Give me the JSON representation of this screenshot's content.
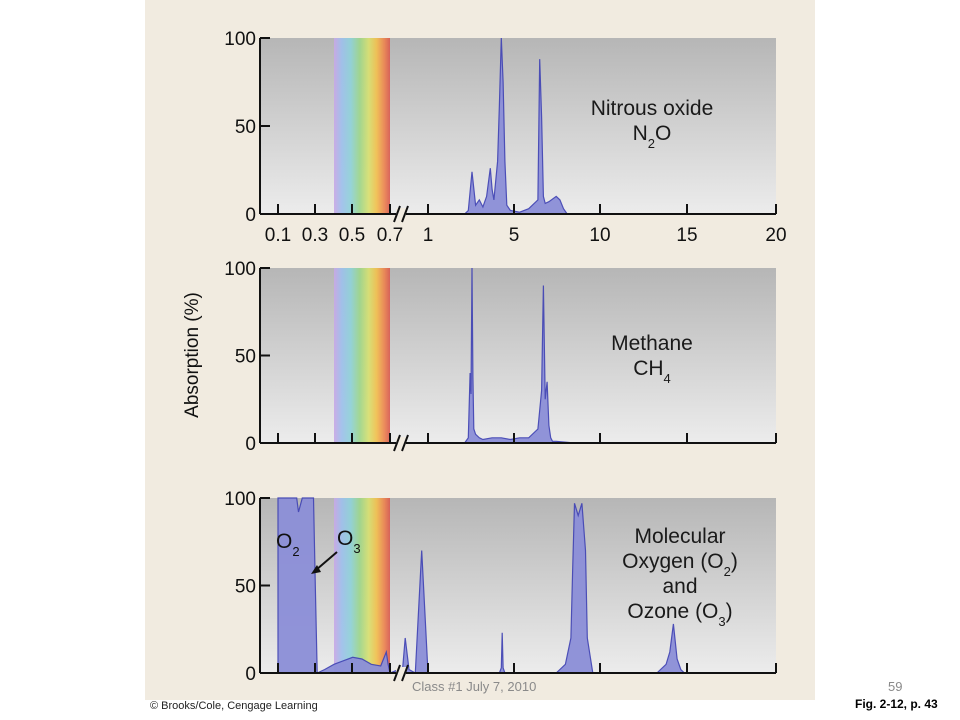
{
  "slide": {
    "footer_text": "Class #1 July 7, 2010",
    "slide_number": "59",
    "figure_reference": "Fig. 2-12, p. 43",
    "credit": "© Brooks/Cole, Cengage Learning"
  },
  "colors": {
    "page_background": "#f1ebe0",
    "absorption_fill": "#8c8fd8",
    "absorption_stroke": "#4447b5"
  },
  "chart_data": [
    {
      "type": "area",
      "ylabel": "Absorption (%)",
      "ylim": [
        0,
        100
      ],
      "yticks": [
        "0",
        "50",
        "100"
      ],
      "xticks": [
        "0.1",
        "0.3",
        "0.5",
        "0.7",
        "1",
        "5",
        "10",
        "15",
        "20"
      ],
      "visible_band_x": [
        0.4,
        0.7
      ],
      "title_lines": [
        "Nitrous oxide",
        "N2O"
      ],
      "series": [
        {
          "x": [
            3.0,
            3.2,
            3.4,
            3.6,
            3.8,
            4.0,
            4.2,
            4.4,
            4.5,
            4.6,
            4.8,
            4.9,
            5.0,
            5.1,
            5.2,
            5.3,
            5.5,
            6.0,
            6.5,
            7.0,
            7.1,
            7.2,
            7.3,
            7.4,
            7.6,
            8.0,
            8.2,
            8.4,
            8.6
          ],
          "y": [
            0,
            2,
            24,
            5,
            8,
            4,
            10,
            26,
            14,
            8,
            30,
            62,
            100,
            75,
            30,
            5,
            2,
            1,
            3,
            8,
            88,
            55,
            10,
            6,
            7,
            10,
            8,
            3,
            0
          ]
        }
      ]
    },
    {
      "type": "area",
      "ylabel": "Absorption (%)",
      "ylim": [
        0,
        100
      ],
      "yticks": [
        "0",
        "50",
        "100"
      ],
      "visible_band_x": [
        0.4,
        0.7
      ],
      "title_lines": [
        "Methane",
        "CH4"
      ],
      "series": [
        {
          "x": [
            3.0,
            3.2,
            3.3,
            3.35,
            3.4,
            3.45,
            3.5,
            3.6,
            3.8,
            4.0,
            4.5,
            5.0,
            5.5,
            6.0,
            6.5,
            7.0,
            7.2,
            7.3,
            7.4,
            7.5,
            7.6,
            7.7,
            7.8,
            8.0,
            9.0
          ],
          "y": [
            0,
            3,
            40,
            28,
            100,
            38,
            8,
            5,
            3,
            2,
            3,
            3,
            2,
            3,
            3,
            8,
            30,
            90,
            25,
            35,
            10,
            3,
            1,
            1,
            0
          ]
        }
      ]
    },
    {
      "type": "area",
      "ylabel": "Absorption (%)",
      "ylim": [
        0,
        100
      ],
      "yticks": [
        "0",
        "50",
        "100"
      ],
      "visible_band_x": [
        0.4,
        0.7
      ],
      "title_lines": [
        "Molecular",
        "Oxygen (O2)",
        "and",
        "Ozone (O3)"
      ],
      "annotations": [
        "O2",
        "O3"
      ],
      "series": [
        {
          "name": "O2",
          "x": [
            0.1,
            0.2,
            0.21,
            0.23,
            0.25,
            0.29,
            0.3,
            0.31
          ],
          "y": [
            100,
            100,
            92,
            100,
            100,
            100,
            50,
            0
          ]
        },
        {
          "name": "O3",
          "x": [
            0.31,
            0.35,
            0.4,
            0.45,
            0.5,
            0.55,
            0.6,
            0.65,
            0.68,
            0.69,
            0.7,
            0.8,
            0.82,
            0.85,
            0.9,
            0.95,
            1.0
          ],
          "y": [
            0,
            2,
            5,
            7,
            9,
            8,
            5,
            4,
            12,
            5,
            0,
            3,
            20,
            2,
            0,
            70,
            0
          ]
        },
        {
          "name": "O3",
          "x": [
            4.9,
            5.0,
            5.05,
            5.1,
            5.2
          ],
          "y": [
            0,
            3,
            23,
            3,
            0
          ]
        },
        {
          "name": "O2",
          "x": [
            8.0,
            8.5,
            8.8,
            8.9,
            9.0,
            9.2,
            9.4,
            9.6,
            9.7,
            10.0
          ],
          "y": [
            0,
            5,
            20,
            60,
            97,
            90,
            97,
            70,
            20,
            0
          ]
        },
        {
          "name": "O3",
          "x": [
            13.5,
            14.0,
            14.2,
            14.4,
            14.6,
            14.8,
            15.0
          ],
          "y": [
            0,
            5,
            12,
            28,
            8,
            2,
            0
          ]
        }
      ]
    }
  ]
}
